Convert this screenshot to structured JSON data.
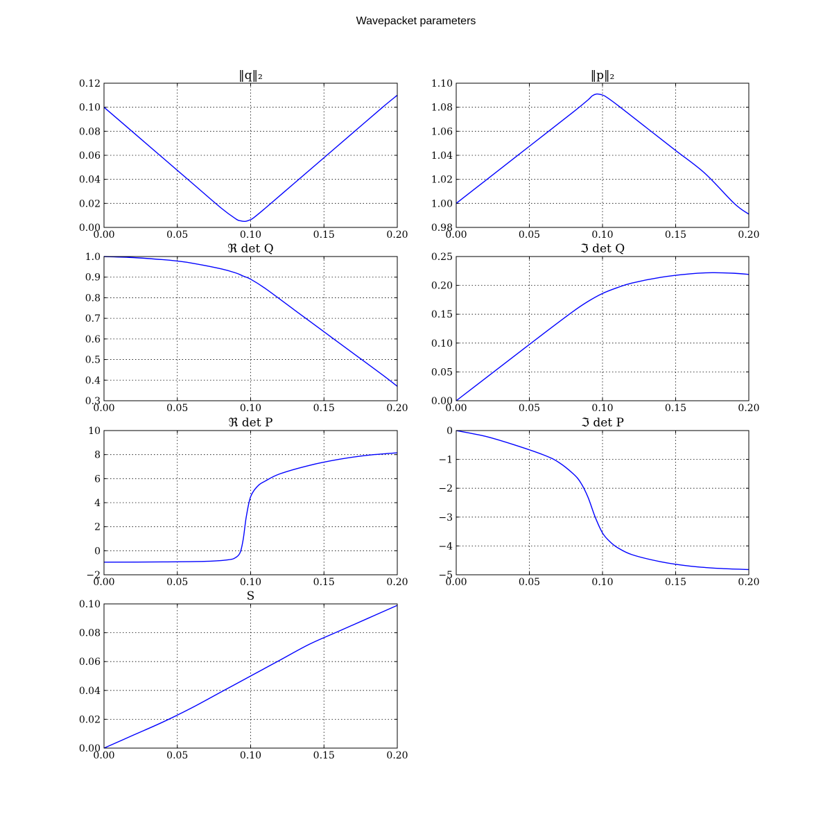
{
  "figure": {
    "title": "Wavepacket parameters",
    "line_color": "#0000ff"
  },
  "chart_data": [
    {
      "type": "line",
      "title": "‖q‖₂",
      "xlabel": "",
      "ylabel": "",
      "xlim": [
        0.0,
        0.2
      ],
      "ylim": [
        0.0,
        0.12
      ],
      "xticks": [
        "0.00",
        "0.05",
        "0.10",
        "0.15",
        "0.20"
      ],
      "yticks": [
        "0.00",
        "0.02",
        "0.04",
        "0.06",
        "0.08",
        "0.10",
        "0.12"
      ],
      "grid": true,
      "x": [
        0.0,
        0.02,
        0.04,
        0.06,
        0.08,
        0.09,
        0.093,
        0.096,
        0.099,
        0.102,
        0.11,
        0.13,
        0.15,
        0.17,
        0.19,
        0.2
      ],
      "y": [
        0.1,
        0.079,
        0.058,
        0.037,
        0.016,
        0.007,
        0.0055,
        0.005,
        0.006,
        0.008,
        0.016,
        0.037,
        0.058,
        0.079,
        0.1,
        0.11
      ]
    },
    {
      "type": "line",
      "title": "‖p‖₂",
      "xlabel": "",
      "ylabel": "",
      "xlim": [
        0.0,
        0.2
      ],
      "ylim": [
        0.98,
        1.1
      ],
      "xticks": [
        "0.00",
        "0.05",
        "0.10",
        "0.15",
        "0.20"
      ],
      "yticks": [
        "0.98",
        "1.00",
        "1.02",
        "1.04",
        "1.06",
        "1.08",
        "1.10"
      ],
      "grid": true,
      "x": [
        0.0,
        0.02,
        0.04,
        0.06,
        0.08,
        0.09,
        0.093,
        0.096,
        0.099,
        0.102,
        0.11,
        0.13,
        0.15,
        0.17,
        0.19,
        0.2
      ],
      "y": [
        1.0,
        1.019,
        1.038,
        1.057,
        1.076,
        1.086,
        1.0895,
        1.091,
        1.0905,
        1.089,
        1.082,
        1.063,
        1.044,
        1.025,
        1.0,
        0.991
      ]
    },
    {
      "type": "line",
      "title": "ℜ det Q",
      "xlabel": "",
      "ylabel": "",
      "xlim": [
        0.0,
        0.2
      ],
      "ylim": [
        0.3,
        1.0
      ],
      "xticks": [
        "0.00",
        "0.05",
        "0.10",
        "0.15",
        "0.20"
      ],
      "yticks": [
        "0.3",
        "0.4",
        "0.5",
        "0.6",
        "0.7",
        "0.8",
        "0.9",
        "1.0"
      ],
      "grid": true,
      "x": [
        0.0,
        0.02,
        0.04,
        0.05,
        0.06,
        0.08,
        0.09,
        0.095,
        0.1,
        0.11,
        0.13,
        0.15,
        0.17,
        0.19,
        0.2
      ],
      "y": [
        1.0,
        0.995,
        0.985,
        0.978,
        0.968,
        0.94,
        0.92,
        0.905,
        0.89,
        0.845,
        0.74,
        0.635,
        0.53,
        0.425,
        0.37
      ]
    },
    {
      "type": "line",
      "title": "ℑ det Q",
      "xlabel": "",
      "ylabel": "",
      "xlim": [
        0.0,
        0.2
      ],
      "ylim": [
        0.0,
        0.25
      ],
      "xticks": [
        "0.00",
        "0.05",
        "0.10",
        "0.15",
        "0.20"
      ],
      "yticks": [
        "0.00",
        "0.05",
        "0.10",
        "0.15",
        "0.20",
        "0.25"
      ],
      "grid": true,
      "x": [
        0.0,
        0.02,
        0.04,
        0.06,
        0.08,
        0.09,
        0.1,
        0.11,
        0.12,
        0.14,
        0.16,
        0.175,
        0.19,
        0.2
      ],
      "y": [
        0.0,
        0.039,
        0.078,
        0.117,
        0.155,
        0.172,
        0.186,
        0.196,
        0.204,
        0.214,
        0.22,
        0.222,
        0.221,
        0.219
      ]
    },
    {
      "type": "line",
      "title": "ℜ det P",
      "xlabel": "",
      "ylabel": "",
      "xlim": [
        0.0,
        0.2
      ],
      "ylim": [
        -2,
        10
      ],
      "xticks": [
        "0.00",
        "0.05",
        "0.10",
        "0.15",
        "0.20"
      ],
      "yticks": [
        "−2",
        "0",
        "2",
        "4",
        "6",
        "8",
        "10"
      ],
      "grid": true,
      "x": [
        0.0,
        0.04,
        0.07,
        0.085,
        0.09,
        0.093,
        0.095,
        0.097,
        0.1,
        0.105,
        0.11,
        0.12,
        0.14,
        0.16,
        0.18,
        0.2
      ],
      "y": [
        -0.95,
        -0.93,
        -0.88,
        -0.75,
        -0.55,
        -0.1,
        1.0,
        2.8,
        4.5,
        5.4,
        5.8,
        6.4,
        7.1,
        7.6,
        7.95,
        8.15
      ]
    },
    {
      "type": "line",
      "title": "ℑ det P",
      "xlabel": "",
      "ylabel": "",
      "xlim": [
        0.0,
        0.2
      ],
      "ylim": [
        -5,
        0
      ],
      "xticks": [
        "0.00",
        "0.05",
        "0.10",
        "0.15",
        "0.20"
      ],
      "yticks": [
        "−5",
        "−4",
        "−3",
        "−2",
        "−1",
        "0"
      ],
      "grid": true,
      "x": [
        0.0,
        0.02,
        0.04,
        0.06,
        0.07,
        0.08,
        0.085,
        0.09,
        0.095,
        0.1,
        0.105,
        0.11,
        0.12,
        0.14,
        0.16,
        0.18,
        0.2
      ],
      "y": [
        0.0,
        -0.2,
        -0.5,
        -0.85,
        -1.1,
        -1.5,
        -1.8,
        -2.3,
        -3.0,
        -3.55,
        -3.85,
        -4.05,
        -4.3,
        -4.55,
        -4.7,
        -4.78,
        -4.82
      ]
    },
    {
      "type": "line",
      "title": "S",
      "xlabel": "",
      "ylabel": "",
      "xlim": [
        0.0,
        0.2
      ],
      "ylim": [
        0.0,
        0.1
      ],
      "xticks": [
        "0.00",
        "0.05",
        "0.10",
        "0.15",
        "0.20"
      ],
      "yticks": [
        "0.00",
        "0.02",
        "0.04",
        "0.06",
        "0.08",
        "0.10"
      ],
      "grid": true,
      "x": [
        0.0,
        0.02,
        0.04,
        0.06,
        0.08,
        0.1,
        0.12,
        0.14,
        0.16,
        0.18,
        0.2
      ],
      "y": [
        0.0,
        0.009,
        0.018,
        0.028,
        0.039,
        0.05,
        0.061,
        0.072,
        0.081,
        0.09,
        0.099
      ]
    }
  ]
}
